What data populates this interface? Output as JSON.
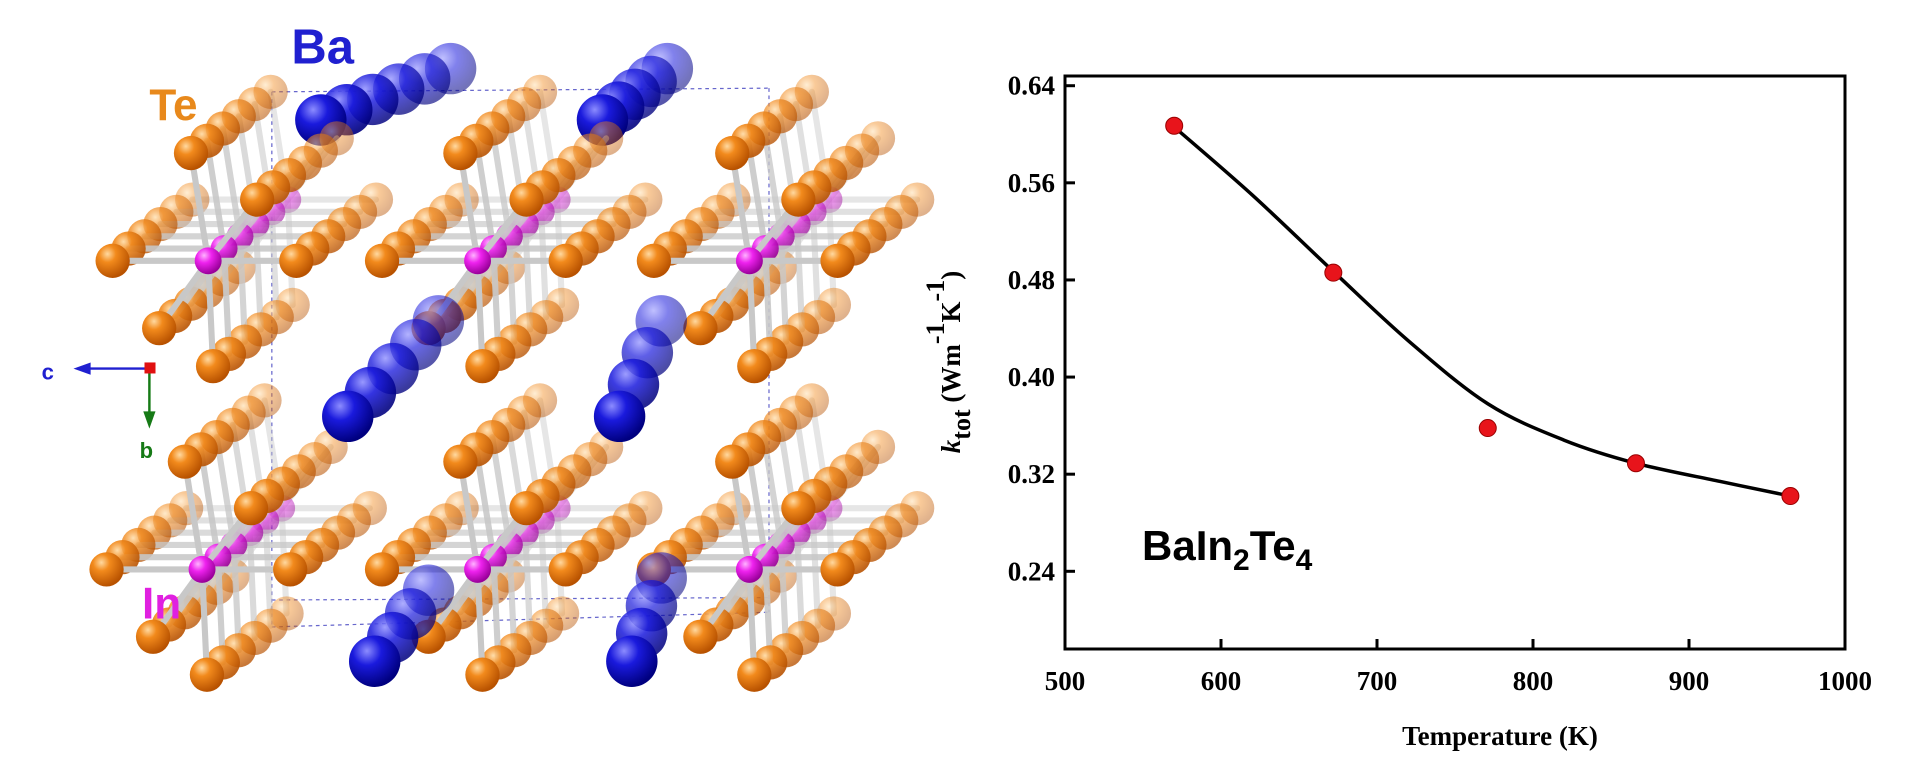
{
  "figure": {
    "labels": {
      "ba": "Ba",
      "te": "Te",
      "in": "In",
      "c": "c",
      "b": "b"
    }
  },
  "chart_data": {
    "type": "scatter",
    "xlabel": "Temperature (K)",
    "ylabel_parts": [
      "k",
      "tot",
      " (Wm",
      "-1",
      "K",
      "-1",
      ")"
    ],
    "annotation_parts": [
      "BaIn",
      "2",
      "Te",
      "4"
    ],
    "xlim": [
      500,
      1000
    ],
    "xticks": [
      500,
      600,
      700,
      800,
      900,
      1000
    ],
    "ylim": [
      0.176,
      0.648
    ],
    "yticks": [
      0.24,
      0.32,
      {
        "value": 0.4,
        "label": "0.40"
      },
      0.48,
      0.56,
      0.64
    ],
    "series": [
      {
        "type": "scatter",
        "color": "#e8141b",
        "x": [
          570,
          672,
          771,
          866,
          965
        ],
        "values": [
          0.607,
          0.486,
          0.358,
          0.329,
          0.302
        ]
      },
      {
        "type": "line",
        "color": "#000000",
        "x": [
          570,
          620,
          672,
          720,
          771,
          820,
          866,
          920,
          965
        ],
        "values": [
          0.606,
          0.55,
          0.487,
          0.43,
          0.378,
          0.348,
          0.329,
          0.314,
          0.302
        ]
      }
    ]
  }
}
